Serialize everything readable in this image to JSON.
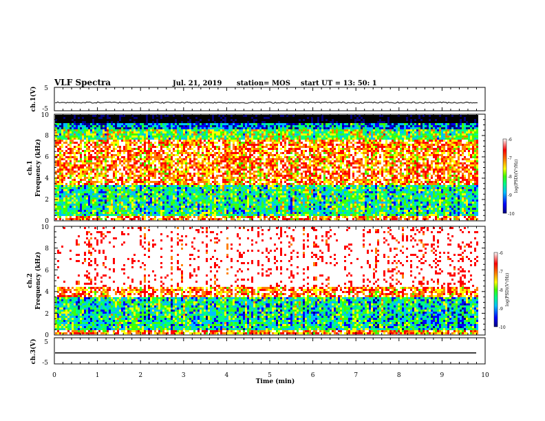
{
  "header": {
    "title": "VLF Spectra",
    "date": "Jul. 21, 2019",
    "station": "station= MOS",
    "start": "start UT =  13: 50: 1"
  },
  "chart_data": [
    {
      "type": "line",
      "panel": "ch1-waveform",
      "ylabel": "ch.1(V)",
      "ylim": [
        -5,
        5
      ],
      "yticks": [
        "5",
        "-5"
      ],
      "xlim": [
        0,
        10
      ],
      "description_values": {
        "mean_level": -1.5,
        "noise": "small"
      }
    },
    {
      "type": "heatmap",
      "panel": "ch1-spectrogram",
      "ylabel_top": "ch.1",
      "ylabel": "Frequency (kHz)",
      "ylim": [
        0,
        10
      ],
      "yticks": [
        "0",
        "2",
        "4",
        "6",
        "8",
        "10"
      ],
      "xlim": [
        0,
        10
      ],
      "data_end_min": 9.83,
      "colorbar": {
        "label": "log(PSD)(V²/Hz)",
        "range": [
          -10,
          -6
        ],
        "ticks": [
          "-6",
          "-7",
          "-8",
          "-9",
          "-10"
        ]
      },
      "bands": [
        {
          "from_khz": 9.2,
          "to_khz": 10,
          "level": -11
        },
        {
          "from_khz": 8.6,
          "to_khz": 9.2,
          "level": -9
        },
        {
          "from_khz": 7.8,
          "to_khz": 8.6,
          "level": -8
        },
        {
          "from_khz": 3.5,
          "to_khz": 7.8,
          "level": -6.9
        },
        {
          "from_khz": 0.5,
          "to_khz": 3.5,
          "level": -8.4
        },
        {
          "from_khz": 0,
          "to_khz": 0.5,
          "level": -6.8
        }
      ]
    },
    {
      "type": "heatmap",
      "panel": "ch2-spectrogram",
      "ylabel_top": "ch.2",
      "ylabel": "Frequency (kHz)",
      "ylim": [
        0,
        10
      ],
      "yticks": [
        "0",
        "2",
        "4",
        "6",
        "8",
        "10"
      ],
      "xlim": [
        0,
        10
      ],
      "data_end_min": 9.83,
      "colorbar": {
        "label": "log(PSD)(V²/Hz)",
        "range": [
          -10,
          -6
        ],
        "ticks": [
          "-6",
          "-7",
          "-8",
          "-9",
          "-10"
        ]
      },
      "bands": [
        {
          "from_khz": 4.5,
          "to_khz": 10,
          "level": -5.8
        },
        {
          "from_khz": 3.5,
          "to_khz": 4.5,
          "level": -6.8
        },
        {
          "from_khz": 0.5,
          "to_khz": 3.5,
          "level": -8.5
        },
        {
          "from_khz": 0,
          "to_khz": 0.5,
          "level": -7.0
        }
      ]
    },
    {
      "type": "line",
      "panel": "ch3-waveform",
      "ylabel": "ch.3(V)",
      "ylim": [
        -5,
        5
      ],
      "yticks": [
        "5",
        "-5"
      ],
      "xlim": [
        0,
        10
      ],
      "description_values": {
        "mean_level": -1.5,
        "noise": "none"
      }
    }
  ],
  "xaxis": {
    "label": "Time (min)",
    "ticks": [
      "0",
      "1",
      "2",
      "3",
      "4",
      "5",
      "6",
      "7",
      "8",
      "9",
      "10"
    ]
  },
  "colors": {
    "cmap": [
      "#000080",
      "#0000ff",
      "#00c0ff",
      "#00ff80",
      "#40ff00",
      "#ffff00",
      "#ff8000",
      "#ff0000",
      "#ffffff"
    ]
  }
}
